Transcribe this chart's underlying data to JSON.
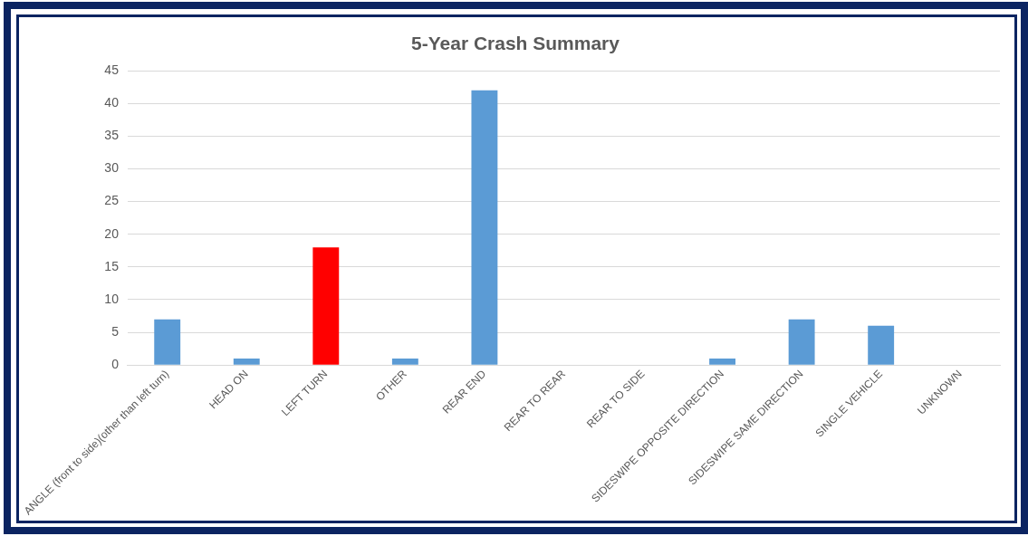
{
  "chart_data": {
    "type": "bar",
    "title": "5-Year Crash Summary",
    "categories": [
      "ANGLE (front to side)(other than left turn)",
      "HEAD ON",
      "LEFT TURN",
      "OTHER",
      "REAR END",
      "REAR TO REAR",
      "REAR TO SIDE",
      "SIDESWIPE OPPOSITE DIRECTION",
      "SIDESWIPE SAME DIRECTION",
      "SINGLE VEHICLE",
      "UNKNOWN"
    ],
    "values": [
      7,
      1,
      18,
      1,
      42,
      0,
      0,
      1,
      7,
      6,
      0
    ],
    "colors": [
      "#5b9bd5",
      "#5b9bd5",
      "#ff0000",
      "#5b9bd5",
      "#5b9bd5",
      "#5b9bd5",
      "#5b9bd5",
      "#5b9bd5",
      "#5b9bd5",
      "#5b9bd5",
      "#5b9bd5"
    ],
    "ylim": [
      0,
      45
    ],
    "yticks": [
      0,
      5,
      10,
      15,
      20,
      25,
      30,
      35,
      40,
      45
    ],
    "grid": "y",
    "legend": false
  }
}
